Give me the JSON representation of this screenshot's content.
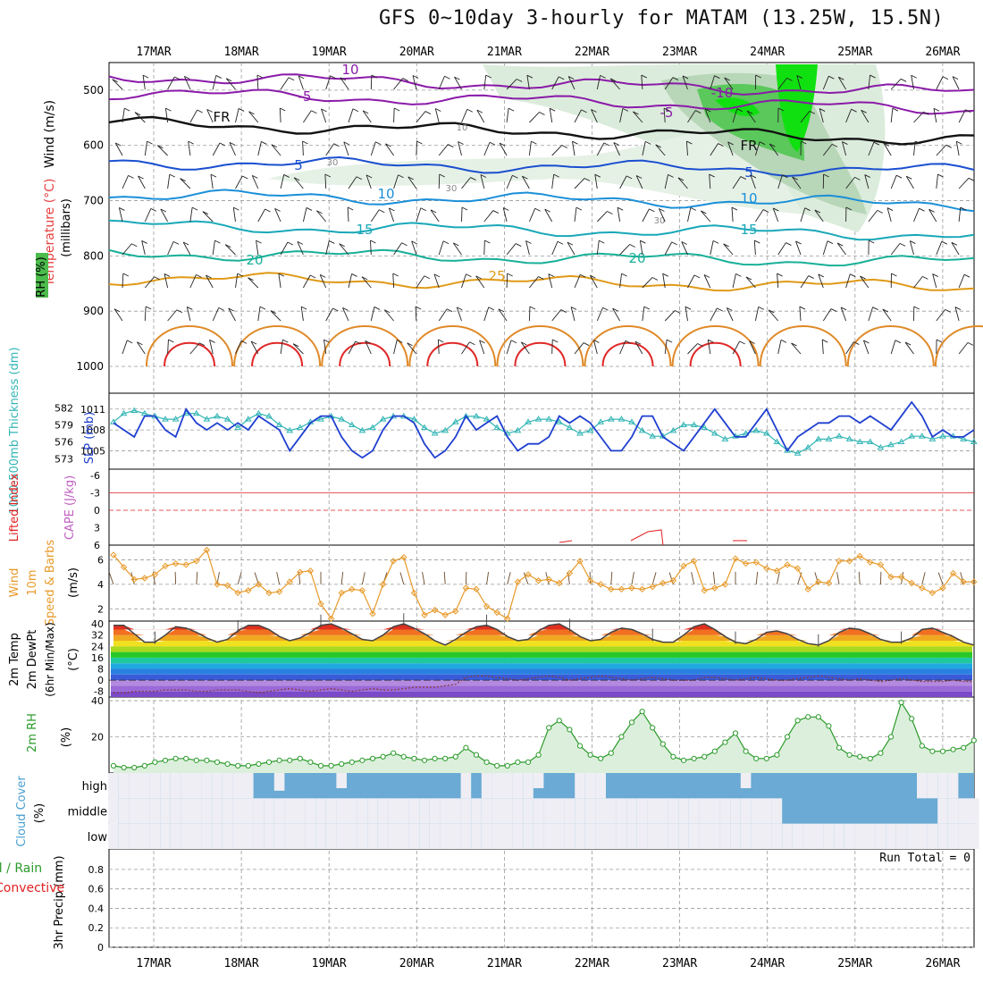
{
  "title": "GFS 0~10day 3-hourly for MATAM (13.25W, 15.5N)",
  "dates": [
    "17MAR",
    "18MAR",
    "19MAR",
    "20MAR",
    "21MAR",
    "22MAR",
    "23MAR",
    "24MAR",
    "25MAR",
    "26MAR"
  ],
  "colors": {
    "frame": "#000000",
    "grid": "#9a9a9a",
    "slp": "#1f3fd0",
    "thick": "#33b5b5",
    "li": "#e02020",
    "wind": "#e89a2a",
    "rh": "#2a9a2a",
    "rhfill": "#dcefdc",
    "cloud": "#6aaad4",
    "cloudClear": "#eeeef4",
    "temp": "#444444"
  },
  "chart_data": [
    {
      "type": "line",
      "panel": "upper-air",
      "title": "Temperature / Wind / RH cross-section",
      "ylabel_parts": [
        "Wind (m/s)",
        "Temperature (°C)",
        "RH (%)"
      ],
      "ylabel_units": "(millibars)",
      "yticks": [
        "500",
        "600",
        "700",
        "800",
        "900",
        "1000"
      ],
      "ylim": [
        450,
        1000
      ],
      "isotherm_labels": [
        "10",
        "-5",
        "FR",
        "5",
        "10",
        "15",
        "20",
        "25",
        "-10",
        "-5",
        "FR",
        "5",
        "10",
        "15",
        "20",
        "30",
        "30",
        "30",
        "10"
      ],
      "isotherms": [
        {
          "name": "-10",
          "level": 475,
          "color": "#8a1aa8"
        },
        {
          "name": "-5",
          "level": 505,
          "color": "#8a1aa8"
        },
        {
          "name": "FR",
          "level": 560,
          "color": "#111111"
        },
        {
          "name": "5",
          "level": 630,
          "color": "#1a4fd0"
        },
        {
          "name": "10",
          "level": 690,
          "color": "#1a8fd8"
        },
        {
          "name": "15",
          "level": 745,
          "color": "#18a8b8"
        },
        {
          "name": "20",
          "level": 795,
          "color": "#18b098"
        },
        {
          "name": "25",
          "level": 840,
          "color": "#e09a18"
        }
      ]
    },
    {
      "type": "line",
      "panel": "slp-thickness",
      "ylabel_left": "1000-500mb Thickness (dm)",
      "ylabel_right": "SLP (mb)",
      "yticks_left": [
        "582",
        "579",
        "576",
        "573"
      ],
      "yticks_right": [
        "1011",
        "1008",
        "1005"
      ],
      "series": [
        {
          "name": "SLP",
          "values": [
            1009,
            1008,
            1007,
            1010,
            1010,
            1008,
            1007,
            1011,
            1009,
            1008,
            1009,
            1008,
            1009,
            1008,
            1010,
            1009,
            1008,
            1005,
            1007,
            1009,
            1010,
            1010,
            1007,
            1005,
            1004,
            1005,
            1008,
            1010,
            1010,
            1009,
            1006,
            1004,
            1005,
            1007,
            1010,
            1008,
            1009,
            1010,
            1007,
            1005,
            1006,
            1006,
            1007,
            1010,
            1009,
            1010,
            1009,
            1007,
            1005,
            1005,
            1007,
            1010,
            1010,
            1007,
            1006,
            1005,
            1007,
            1009,
            1011,
            1009,
            1007,
            1007,
            1009,
            1011,
            1008,
            1005,
            1007,
            1008,
            1009,
            1009,
            1010,
            1010,
            1009,
            1010,
            1009,
            1008,
            1010,
            1012,
            1010,
            1007,
            1008,
            1007,
            1007,
            1008
          ]
        },
        {
          "name": "Thickness",
          "values": [
            579.5,
            581,
            581.5,
            581,
            580.5,
            580,
            580,
            581,
            581,
            580,
            580.5,
            580,
            578.5,
            580,
            581,
            580.5,
            579,
            578,
            578.5,
            579.5,
            580,
            580.5,
            580,
            579,
            578,
            578.5,
            580,
            580.5,
            580.5,
            580,
            578.5,
            577.5,
            578,
            579.5,
            580.5,
            580.5,
            580,
            578.5,
            577.5,
            578,
            579.5,
            580,
            580,
            579.5,
            578.5,
            577.5,
            578,
            579.5,
            580,
            580,
            579.5,
            578,
            577,
            577,
            578,
            579,
            579,
            578.5,
            577.5,
            576.5,
            577,
            577.5,
            578,
            577.5,
            576,
            574.5,
            574,
            575,
            576.5,
            576.5,
            577,
            576.5,
            576,
            576,
            575,
            575.5,
            576,
            577,
            577,
            576.5,
            577,
            577,
            576.5,
            576
          ]
        }
      ]
    },
    {
      "type": "line",
      "panel": "cape-li",
      "ylabel_left": "Lifted Index",
      "ylabel_right": "CAPE (J/kg)",
      "yticks": [
        "-6",
        "-3",
        "0",
        "3",
        "6"
      ],
      "ylim": [
        -6,
        6
      ]
    },
    {
      "type": "line",
      "panel": "wind10m",
      "ylabel": "10m Wind Speed & Barbs (m/s)",
      "yticks": [
        "6",
        "4",
        "2"
      ],
      "ylim": [
        1,
        7.2
      ],
      "series": [
        {
          "name": "Wind speed",
          "values": [
            6.4,
            5.4,
            4.4,
            4.5,
            4.8,
            5.5,
            5.7,
            5.6,
            5.9,
            6.8,
            4.0,
            3.9,
            3.3,
            3.5,
            4.0,
            3.3,
            3.4,
            4.2,
            5.0,
            5.1,
            2.4,
            1.2,
            3.3,
            3.6,
            3.5,
            1.6,
            4.0,
            5.9,
            6.2,
            3.3,
            1.5,
            1.9,
            1.5,
            1.8,
            3.7,
            3.6,
            2.2,
            1.7,
            1.2,
            4.2,
            4.8,
            4.3,
            4.4,
            4.1,
            4.9,
            5.9,
            4.3,
            4.0,
            3.6,
            3.6,
            3.7,
            3.6,
            3.8,
            4.1,
            4.3,
            5.5,
            5.9,
            3.5,
            3.7,
            4.0,
            6.1,
            5.7,
            5.8,
            5.3,
            5.1,
            5.6,
            5.3,
            3.6,
            4.2,
            4.1,
            5.9,
            5.9,
            6.3,
            5.8,
            5.6,
            4.6,
            4.6,
            4.1,
            3.7,
            3.3,
            3.7,
            4.9,
            4.2,
            4.2
          ]
        }
      ]
    },
    {
      "type": "area",
      "panel": "temp2m",
      "ylabel": "2m Temp 2m DewPt (6hr Min/Max) (°C)",
      "yticks": [
        "40",
        "32",
        "24",
        "16",
        "8",
        "0",
        "-8"
      ],
      "ylim": [
        -12,
        42
      ],
      "series": [
        {
          "name": "2m Temp max",
          "values": [
            39,
            39,
            33,
            27,
            27,
            32,
            38,
            37,
            34,
            30,
            27,
            29,
            35,
            39,
            39,
            36,
            31,
            28,
            30,
            34,
            39,
            40,
            37,
            33,
            29,
            28,
            32,
            38,
            40,
            37,
            33,
            28,
            25,
            29,
            34,
            38,
            39,
            36,
            31,
            28,
            29,
            35,
            39,
            40,
            36,
            31,
            28,
            29,
            34,
            37,
            36,
            33,
            29,
            27,
            27,
            32,
            38,
            40,
            36,
            31,
            27,
            26,
            29,
            34,
            35,
            33,
            29,
            26,
            25,
            28,
            34,
            37,
            36,
            33,
            29,
            27,
            27,
            30,
            36,
            37,
            34,
            31,
            27,
            25
          ]
        },
        {
          "name": "2m DewPt",
          "values": [
            -9,
            -9,
            -8,
            -8,
            -8,
            -7,
            -7,
            -7,
            -8,
            -8,
            -7,
            -7,
            -7,
            -8,
            -9,
            -8,
            -7,
            -6,
            -7,
            -8,
            -7,
            -6,
            -7,
            -8,
            -7,
            -6,
            -7,
            -7,
            -6,
            -5,
            -5,
            -5,
            -4,
            -3,
            2,
            3,
            3,
            2,
            1,
            0,
            1,
            2,
            3,
            2,
            0,
            1,
            2,
            3,
            2,
            1,
            0,
            1,
            2,
            1,
            0,
            0,
            0,
            2,
            2,
            1,
            0,
            1,
            2,
            1,
            0,
            0,
            1,
            2,
            3,
            2,
            1,
            0,
            1,
            0,
            -1,
            0,
            1,
            0,
            -1,
            -1,
            -1,
            0,
            -1,
            -1
          ]
        }
      ]
    },
    {
      "type": "area",
      "panel": "rh2m",
      "ylabel": "2m RH (%)",
      "yticks": [
        "40",
        "20"
      ],
      "ylim": [
        0,
        42
      ],
      "series": [
        {
          "name": "2m RH",
          "values": [
            4,
            3,
            3,
            4,
            6,
            7,
            8,
            8,
            7,
            7,
            6,
            5,
            4,
            4,
            5,
            6,
            7,
            7,
            8,
            6,
            4,
            4,
            5,
            6,
            7,
            8,
            9,
            11,
            9,
            8,
            7,
            8,
            8,
            9,
            14,
            10,
            6,
            4,
            4,
            6,
            6,
            10,
            25,
            29,
            24,
            15,
            10,
            8,
            11,
            20,
            28,
            34,
            25,
            16,
            9,
            7,
            8,
            9,
            12,
            17,
            22,
            12,
            8,
            8,
            10,
            20,
            29,
            31,
            31,
            26,
            14,
            10,
            9,
            8,
            11,
            20,
            39,
            30,
            15,
            12,
            12,
            13,
            14,
            18
          ]
        }
      ]
    },
    {
      "type": "heatmap",
      "panel": "cloud",
      "ylabel": "Cloud Cover (%)",
      "ylevels": [
        "high",
        "middle",
        "low"
      ],
      "series": [
        {
          "name": "high",
          "values": [
            0,
            0,
            0,
            0,
            0,
            0,
            0,
            0,
            0,
            0,
            0,
            0,
            0,
            0,
            90,
            80,
            30,
            70,
            80,
            90,
            60,
            70,
            40,
            100,
            100,
            100,
            100,
            100,
            100,
            100,
            100,
            100,
            100,
            100,
            0,
            100,
            0,
            0,
            0,
            0,
            0,
            40,
            100,
            100,
            70,
            0,
            0,
            0,
            60,
            100,
            100,
            100,
            100,
            100,
            100,
            100,
            100,
            100,
            100,
            100,
            60,
            40,
            70,
            80,
            100,
            100,
            100,
            100,
            50,
            50,
            60,
            100,
            100,
            100,
            100,
            100,
            100,
            100,
            0,
            0,
            0,
            0,
            70,
            90
          ]
        },
        {
          "name": "middle",
          "values": [
            0,
            0,
            0,
            0,
            0,
            0,
            0,
            0,
            0,
            0,
            0,
            0,
            0,
            0,
            0,
            0,
            0,
            0,
            0,
            0,
            0,
            0,
            0,
            0,
            0,
            0,
            0,
            0,
            0,
            0,
            0,
            0,
            0,
            0,
            0,
            0,
            0,
            0,
            0,
            0,
            0,
            0,
            0,
            0,
            0,
            0,
            0,
            0,
            0,
            0,
            0,
            0,
            0,
            0,
            0,
            0,
            0,
            0,
            0,
            0,
            0,
            0,
            0,
            0,
            0,
            60,
            100,
            100,
            100,
            90,
            100,
            100,
            100,
            90,
            100,
            100,
            100,
            100,
            100,
            100,
            0,
            0,
            0,
            0
          ]
        },
        {
          "name": "low",
          "values": [
            0,
            0,
            0,
            0,
            0,
            0,
            0,
            0,
            0,
            0,
            0,
            0,
            0,
            0,
            0,
            0,
            0,
            0,
            0,
            0,
            0,
            0,
            0,
            0,
            0,
            0,
            0,
            0,
            0,
            0,
            0,
            0,
            0,
            0,
            0,
            0,
            0,
            0,
            0,
            0,
            0,
            0,
            0,
            0,
            0,
            0,
            0,
            0,
            0,
            0,
            0,
            0,
            0,
            0,
            0,
            0,
            0,
            0,
            0,
            0,
            0,
            0,
            0,
            0,
            0,
            0,
            0,
            0,
            0,
            0,
            0,
            0,
            0,
            0,
            0,
            0,
            0,
            0,
            0,
            0,
            0,
            0,
            0,
            0
          ]
        }
      ]
    },
    {
      "type": "bar",
      "panel": "precip",
      "ylabel": "3hr Precip (mm)",
      "legend": "Total / Rain / Convective",
      "legend_total": "Total / Rain",
      "legend_conv": "Convective",
      "annotation": "Run Total = 0",
      "yticks": [
        "0.8",
        "0.6",
        "0.4",
        "0.2",
        "0"
      ],
      "ylim": [
        0,
        0.9
      ],
      "values": [
        0,
        0,
        0,
        0,
        0,
        0,
        0,
        0,
        0,
        0,
        0,
        0,
        0,
        0,
        0,
        0,
        0,
        0,
        0,
        0,
        0,
        0,
        0,
        0,
        0,
        0,
        0,
        0,
        0,
        0,
        0,
        0,
        0,
        0,
        0,
        0,
        0,
        0,
        0,
        0,
        0,
        0,
        0,
        0,
        0,
        0,
        0,
        0,
        0,
        0,
        0,
        0,
        0,
        0,
        0,
        0,
        0,
        0,
        0,
        0,
        0,
        0,
        0,
        0,
        0,
        0,
        0,
        0,
        0,
        0,
        0,
        0,
        0,
        0,
        0,
        0,
        0,
        0,
        0,
        0,
        0,
        0,
        0,
        0
      ]
    }
  ]
}
